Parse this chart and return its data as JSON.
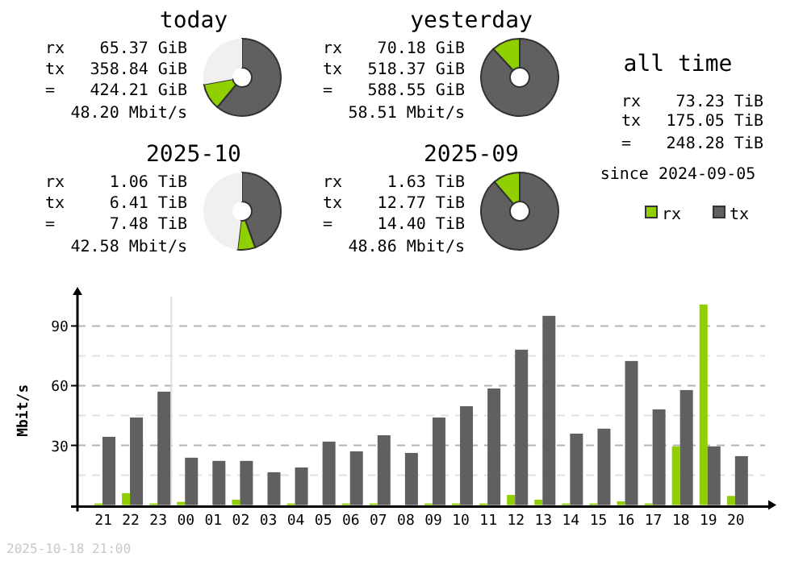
{
  "chart_data": [
    {
      "type": "donut",
      "title": "today",
      "categories": [
        null,
        null,
        null
      ],
      "values": [
        61.0,
        11.1,
        27.9
      ],
      "colors": [
        "#606060",
        "#90d000",
        "#f0f0f0"
      ],
      "annotations": [
        "rx 65.37 GiB",
        "tx 358.84 GiB",
        "= 424.21 GiB",
        "48.20 Mbit/s"
      ]
    },
    {
      "type": "donut",
      "title": "yesterday",
      "categories": [
        null,
        null
      ],
      "values": [
        88.1,
        11.9
      ],
      "colors": [
        "#606060",
        "#90d000"
      ],
      "annotations": [
        "rx 70.18 GiB",
        "tx 518.37 GiB",
        "= 588.55 GiB",
        "58.51 Mbit/s"
      ]
    },
    {
      "type": "other",
      "title": "all time",
      "annotations": [
        "rx 73.23 TiB",
        "tx 175.05 TiB",
        "= 248.28 TiB",
        "since 2024-09-05"
      ]
    },
    {
      "type": "donut",
      "title": "2025-10",
      "categories": [
        null,
        null,
        null
      ],
      "values": [
        44.5,
        7.4,
        48.1
      ],
      "colors": [
        "#606060",
        "#90d000",
        "#f0f0f0"
      ],
      "annotations": [
        "rx 1.06 TiB",
        "tx 6.41 TiB",
        "= 7.48 TiB",
        "42.58 Mbit/s"
      ]
    },
    {
      "type": "donut",
      "title": "2025-09",
      "categories": [
        null,
        null
      ],
      "values": [
        88.7,
        11.3
      ],
      "colors": [
        "#606060",
        "#90d000"
      ],
      "annotations": [
        "rx 1.63 TiB",
        "tx 12.77 TiB",
        "= 14.40 TiB",
        "48.86 Mbit/s"
      ]
    },
    {
      "type": "bar",
      "categories": [
        "21",
        "22",
        "23",
        "00",
        "01",
        "02",
        "03",
        "04",
        "05",
        "06",
        "07",
        "08",
        "09",
        "10",
        "11",
        "12",
        "13",
        "14",
        "15",
        "16",
        "17",
        "18",
        "19",
        "20"
      ],
      "series": [
        {
          "name": "rx",
          "color": "#90d000",
          "values": [
            0.8,
            6,
            0.8,
            1.6,
            0,
            2.7,
            0,
            0.8,
            0,
            0.8,
            0.8,
            0,
            0.8,
            0.8,
            0.8,
            5.1,
            2.7,
            0.8,
            0.8,
            1.9,
            0.8,
            29.5,
            100.8,
            4.6
          ]
        },
        {
          "name": "tx",
          "color": "#606060",
          "values": [
            34.3,
            44,
            57,
            23.8,
            22.2,
            22.2,
            16.5,
            18.9,
            31.9,
            27,
            35.1,
            26.2,
            44,
            49.7,
            58.6,
            78.1,
            95.1,
            35.9,
            38.4,
            72.4,
            48.1,
            57.8,
            29.5,
            24.6
          ]
        }
      ],
      "ylabel": "Mbit/s",
      "ylim": [
        0,
        108
      ],
      "yticks": [
        {
          "value": 15,
          "label": null
        },
        30,
        {
          "value": 45,
          "label": null
        },
        60,
        {
          "value": 75,
          "label": null
        },
        90
      ],
      "grid": "y",
      "legend": "top right",
      "ref_lines": [
        {
          "axis": "x",
          "value": "00",
          "color": "#e0e0e0"
        }
      ],
      "annotations": [
        "2025-10-18 21:00"
      ]
    }
  ]
}
